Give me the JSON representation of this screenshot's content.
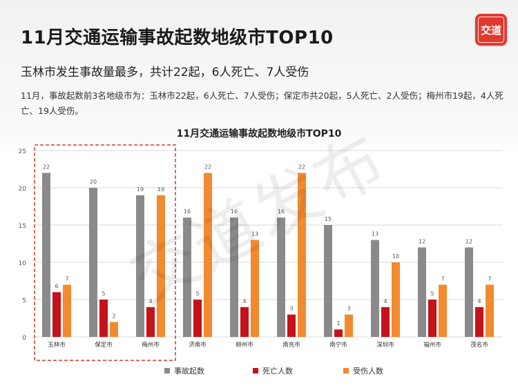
{
  "header": {
    "title": "11月交通运输事故起数地级市TOP10",
    "subtitle": "玉林市发生事故量最多，共计22起，6人死亡、7人受伤",
    "summary": "11月，事故起数前3名地级市为：玉林市22起，6人死亡、7人受伤；保定市共20起，5人死亡、2人受伤；梅州市19起，4人死亡、19人受伤。",
    "logo_text": "交道",
    "watermark_text": "交道发布"
  },
  "colors": {
    "accidents": "#8a8a8a",
    "deaths": "#c4131b",
    "injuries": "#f28a2e",
    "highlight_border": "#d63a2f"
  },
  "chart_data": {
    "type": "bar",
    "title": "11月交通运输事故起数地级市TOP10",
    "xlabel": "",
    "ylabel": "",
    "ylim": [
      0,
      25
    ],
    "yticks": [
      0,
      5,
      10,
      15,
      20,
      25
    ],
    "grid": true,
    "legend_position": "bottom",
    "categories": [
      "玉林市",
      "保定市",
      "梅州市",
      "济南市",
      "柳州市",
      "南充市",
      "南宁市",
      "深圳市",
      "福州市",
      "茂名市"
    ],
    "series": [
      {
        "name": "事故起数",
        "values": [
          22,
          20,
          19,
          16,
          16,
          16,
          15,
          13,
          12,
          12
        ]
      },
      {
        "name": "死亡人数",
        "values": [
          6,
          5,
          4,
          5,
          4,
          3,
          1,
          4,
          5,
          4
        ]
      },
      {
        "name": "受伤人数",
        "values": [
          7,
          2,
          19,
          22,
          13,
          22,
          3,
          10,
          7,
          7
        ]
      }
    ],
    "highlight_categories": [
      "玉林市",
      "保定市",
      "梅州市"
    ]
  }
}
